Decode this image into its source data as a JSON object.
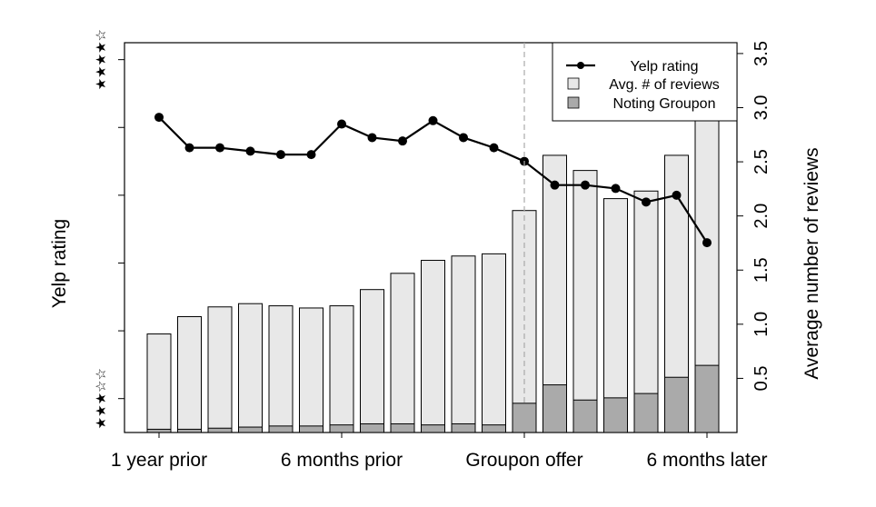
{
  "chart_data": {
    "type": "bar",
    "x_tick_labels": [
      {
        "index": 0,
        "label": "1 year prior"
      },
      {
        "index": 6,
        "label": "6 months prior"
      },
      {
        "index": 12,
        "label": "Groupon offer"
      },
      {
        "index": 18,
        "label": "6 months later"
      }
    ],
    "left_axis": {
      "label": "Yelp rating",
      "ticks": [
        {
          "value": 3.0,
          "stars": "★★★☆☆"
        },
        {
          "value": 4.0,
          "stars": "★★★★☆"
        }
      ]
    },
    "right_axis": {
      "label": "Average number of reviews",
      "ylim": [
        0,
        3.6
      ],
      "ticks": [
        "0.5",
        "1.0",
        "1.5",
        "2.0",
        "2.5",
        "3.0",
        "3.5"
      ]
    },
    "rating_ylim": [
      2.9,
      4.05
    ],
    "series": [
      {
        "name": "Yelp rating",
        "type": "line",
        "axis": "left",
        "values": [
          3.83,
          3.74,
          3.74,
          3.73,
          3.72,
          3.72,
          3.81,
          3.77,
          3.76,
          3.82,
          3.77,
          3.74,
          3.7,
          3.63,
          3.63,
          3.62,
          3.58,
          3.6,
          3.46
        ]
      },
      {
        "name": "Avg. # of reviews",
        "type": "bar",
        "axis": "right",
        "color": "#e8e8e8",
        "values": [
          0.91,
          1.07,
          1.16,
          1.19,
          1.17,
          1.15,
          1.17,
          1.32,
          1.47,
          1.59,
          1.63,
          1.65,
          2.05,
          2.56,
          2.42,
          2.16,
          2.23,
          2.56,
          3.05
        ]
      },
      {
        "name": "Noting Groupon",
        "type": "bar",
        "axis": "right",
        "color": "#aaaaaa",
        "values": [
          0.03,
          0.03,
          0.04,
          0.05,
          0.06,
          0.06,
          0.07,
          0.08,
          0.08,
          0.07,
          0.08,
          0.07,
          0.27,
          0.44,
          0.3,
          0.32,
          0.36,
          0.51,
          0.62
        ]
      }
    ],
    "offer_index": 12,
    "legend_placement": "top-right",
    "grid": false
  }
}
